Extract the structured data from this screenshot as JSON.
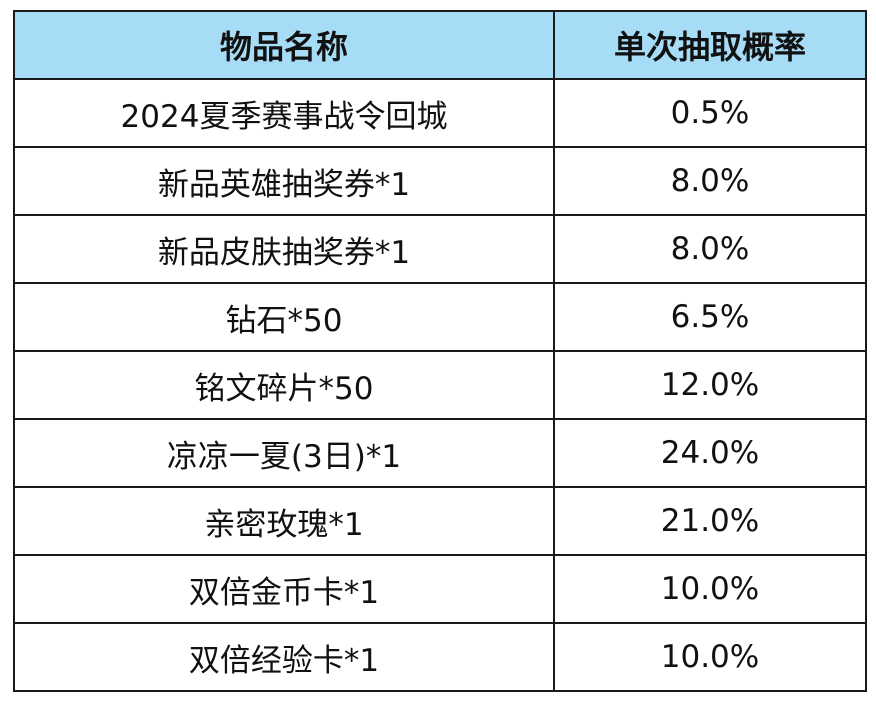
{
  "table": {
    "headers": {
      "item_name": "物品名称",
      "probability": "单次抽取概率"
    },
    "rows": [
      {
        "item": "2024夏季赛事战令回城",
        "probability": "0.5%"
      },
      {
        "item": "新品英雄抽奖券*1",
        "probability": "8.0%"
      },
      {
        "item": "新品皮肤抽奖券*1",
        "probability": "8.0%"
      },
      {
        "item": "钻石*50",
        "probability": "6.5%"
      },
      {
        "item": "铭文碎片*50",
        "probability": "12.0%"
      },
      {
        "item": "凉凉一夏(3日)*1",
        "probability": "24.0%"
      },
      {
        "item": "亲密玫瑰*1",
        "probability": "21.0%"
      },
      {
        "item": "双倍金币卡*1",
        "probability": "10.0%"
      },
      {
        "item": "双倍经验卡*1",
        "probability": "10.0%"
      }
    ]
  },
  "colors": {
    "header_background": "#a6dcf6",
    "border": "#1a1a1a",
    "text": "#111111"
  }
}
